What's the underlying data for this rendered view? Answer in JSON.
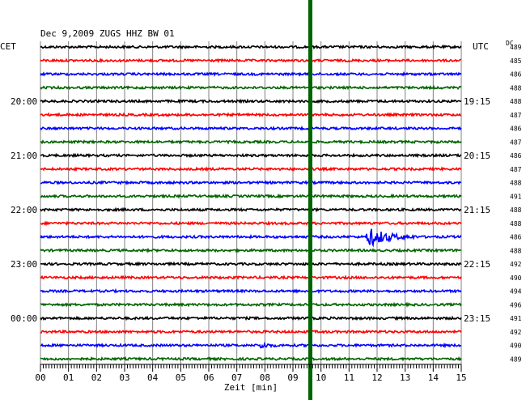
{
  "header": {
    "title": "Dec 9,2009   ZUGS HHZ BW 01",
    "left_tz": "CET",
    "right_tz": "UTC",
    "dc_label": "DC"
  },
  "chart_data": {
    "type": "line",
    "title": "Dec 9,2009   ZUGS HHZ BW 01",
    "xlabel": "Zeit [min]",
    "ylabel": "",
    "xlim": [
      0,
      15
    ],
    "x_ticks": [
      "00",
      "01",
      "02",
      "03",
      "04",
      "05",
      "06",
      "07",
      "08",
      "09",
      "10",
      "11",
      "12",
      "13",
      "14",
      "15"
    ],
    "grid": true,
    "trace_count": 24,
    "trace_colors": [
      "#000000",
      "#ff0000",
      "#0000ff",
      "#006400"
    ],
    "left_hour_labels": [
      "20:00",
      "21:00",
      "22:00",
      "23:00",
      "00:00"
    ],
    "right_hour_labels": [
      "19:15",
      "20:15",
      "21:15",
      "22:15",
      "23:15"
    ],
    "dc_offsets": [
      "489",
      "485",
      "486",
      "488",
      "488",
      "487",
      "486",
      "487",
      "486",
      "487",
      "488",
      "491",
      "488",
      "488",
      "486",
      "488",
      "492",
      "490",
      "494",
      "496",
      "491",
      "492",
      "490",
      "489"
    ],
    "events": [
      {
        "trace": 14,
        "x_start_min": 11.6,
        "x_end_min": 13.4,
        "amplitude": "large"
      },
      {
        "trace": 22,
        "x_start_min": 7.8,
        "x_end_min": 8.4,
        "amplitude": "small"
      }
    ],
    "marker_line_min": 9.62,
    "marker_color": "#006400"
  }
}
